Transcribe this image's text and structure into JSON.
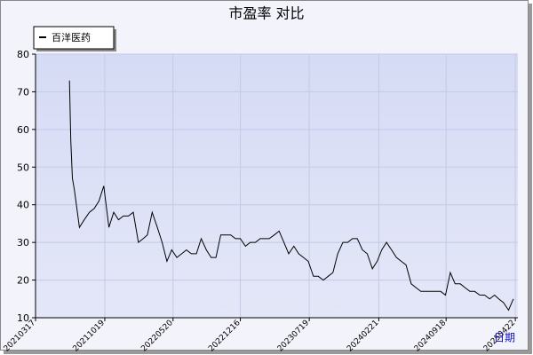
{
  "chart_data": {
    "type": "line",
    "title": "市盈率  对比",
    "x_label": "日期",
    "x": [
      "20210701",
      "20210705",
      "20210710",
      "20210716",
      "20210801",
      "20210816",
      "20210901",
      "20210916",
      "20211001",
      "20211016",
      "20211101",
      "20211116",
      "20211201",
      "20211216",
      "20220101",
      "20220116",
      "20220201",
      "20220216",
      "20220301",
      "20220316",
      "20220401",
      "20220416",
      "20220501",
      "20220516",
      "20220601",
      "20220616",
      "20220701",
      "20220716",
      "20220801",
      "20220816",
      "20220901",
      "20220916",
      "20221001",
      "20221016",
      "20221101",
      "20221116",
      "20221201",
      "20221216",
      "20230101",
      "20230116",
      "20230201",
      "20230216",
      "20230301",
      "20230316",
      "20230401",
      "20230416",
      "20230501",
      "20230516",
      "20230601",
      "20230616",
      "20230701",
      "20230716",
      "20230801",
      "20230816",
      "20230901",
      "20230916",
      "20231001",
      "20231016",
      "20231101",
      "20231116",
      "20231201",
      "20231216",
      "20240101",
      "20240116",
      "20240201",
      "20240216",
      "20240301",
      "20240316",
      "20240401",
      "20240416",
      "20240501",
      "20240516",
      "20240601",
      "20240616",
      "20240701",
      "20240716",
      "20240801",
      "20240816",
      "20240901",
      "20240916",
      "20241001",
      "20241016",
      "20241101",
      "20241116",
      "20241201",
      "20241216",
      "20250101",
      "20250116",
      "20250201",
      "20250216",
      "20250301",
      "20250316",
      "20250401",
      "20250416"
    ],
    "series": [
      {
        "name": "百洋医药",
        "color": "#000000",
        "values": [
          73,
          57,
          47,
          44,
          34,
          36,
          38,
          39,
          41,
          45,
          34,
          38,
          36,
          37,
          37,
          38,
          30,
          31,
          32,
          38,
          34,
          30,
          25,
          28,
          26,
          27,
          28,
          27,
          27,
          31,
          28,
          26,
          26,
          32,
          32,
          32,
          31,
          31,
          29,
          30,
          30,
          31,
          31,
          31,
          32,
          33,
          30,
          27,
          29,
          27,
          26,
          25,
          21,
          21,
          20,
          21,
          22,
          27,
          30,
          30,
          31,
          31,
          28,
          27,
          23,
          25,
          28,
          30,
          28,
          26,
          25,
          24,
          19,
          18,
          17,
          17,
          17,
          17,
          17,
          16,
          22,
          19,
          19,
          18,
          17,
          17,
          16,
          16,
          15,
          16,
          15,
          14,
          12,
          15
        ]
      }
    ],
    "xlim": [
      "20210317",
      "20250430"
    ],
    "xticks": [
      "20210317",
      "20211019",
      "20220520",
      "20221216",
      "20230719",
      "20240221",
      "20240918",
      "20250422"
    ],
    "ylim": [
      10,
      80
    ],
    "yticks": [
      10,
      20,
      30,
      40,
      50,
      60,
      70,
      80
    ],
    "grid": true,
    "legend": "top-left"
  }
}
